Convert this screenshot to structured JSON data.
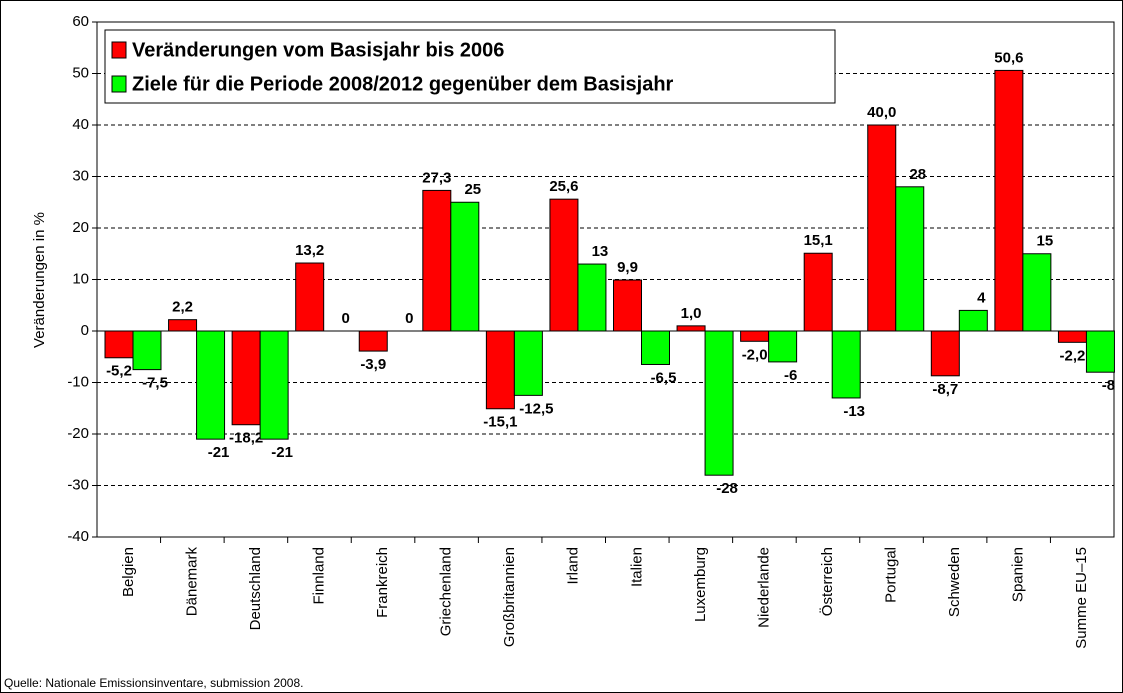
{
  "chart_data": {
    "type": "bar",
    "source": "Quelle: Nationale Emissionsinventare, submission 2008.",
    "y_axis_label": "Veränderungen in %",
    "categories": [
      "Belgien",
      "Dänemark",
      "Deutschland",
      "Finnland",
      "Frankreich",
      "Griechenland",
      "Großbritannien",
      "Irland",
      "Italien",
      "Luxemburg",
      "Niederlande",
      "Österreich",
      "Portugal",
      "Schweden",
      "Spanien",
      "Summe EU–15"
    ],
    "series": [
      {
        "name": "Veränderungen vom Basisjahr bis 2006",
        "color": "#ff0000",
        "values": [
          -5.2,
          2.2,
          -18.2,
          13.2,
          -3.9,
          27.3,
          -15.1,
          25.6,
          9.9,
          1.0,
          -2.0,
          15.1,
          40.0,
          -8.7,
          50.6,
          -2.2
        ],
        "value_labels": [
          "-5,2",
          "2,2",
          "-18,2",
          "13,2",
          "-3,9",
          "27,3",
          "-15,1",
          "25,6",
          "9,9",
          "1,0",
          "-2,0",
          "15,1",
          "40,0",
          "-8,7",
          "50,6",
          "-2,2"
        ]
      },
      {
        "name": "Ziele für die Periode 2008/2012 gegenüber dem Basisjahr",
        "color": "#00ff00",
        "values": [
          -7.5,
          -21,
          -21,
          0,
          0,
          25,
          -12.5,
          13,
          -6.5,
          -28,
          -6,
          -13,
          28,
          4,
          15,
          -8
        ],
        "value_labels": [
          "-7,5",
          "-21",
          "-21",
          "0",
          "0",
          "25",
          "-12,5",
          "13",
          "-6,5",
          "-28",
          "-6",
          "-13",
          "28",
          "4",
          "15",
          "-8"
        ]
      }
    ],
    "ylim": [
      -40,
      60
    ],
    "yticks": [
      -40,
      -30,
      -20,
      -10,
      0,
      10,
      20,
      30,
      40,
      50,
      60
    ],
    "grid": true
  }
}
